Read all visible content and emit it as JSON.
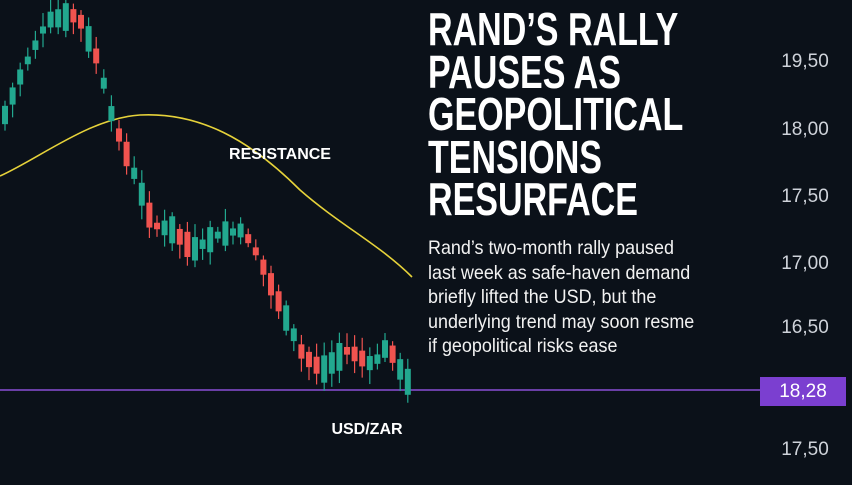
{
  "header": {
    "title": [
      "RAND’S RALLY",
      "PAUSES AS",
      "GEOPOLITICAL",
      "TENSIONS",
      "RESURFACE"
    ]
  },
  "body": [
    "Rand’s two-month rally paused",
    "last week as safe-haven demand",
    "briefly lifted the USD, but the",
    "underlying trend may soon resme",
    "if geopolitical risks ease"
  ],
  "labels": {
    "resistance": "RESISTANCE",
    "pair": "USD/ZAR"
  },
  "axis_labels": [
    "19,50",
    "18,00",
    "17,50",
    "17,00",
    "16,50"
  ],
  "price_tag": "18,28",
  "axis_bottom": "17,50"
}
